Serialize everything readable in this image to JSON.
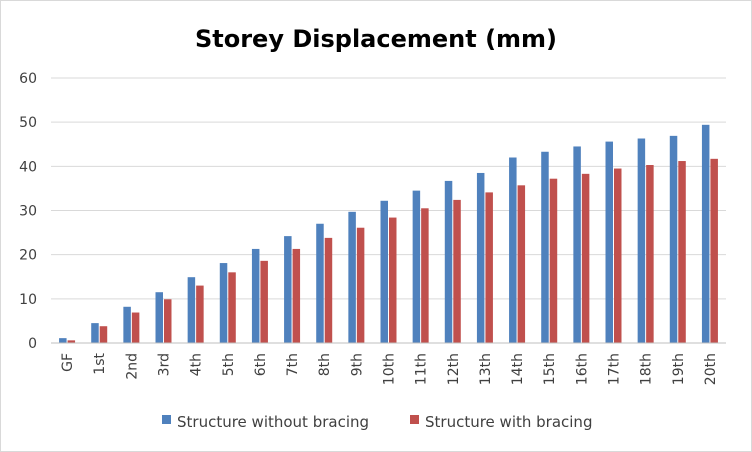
{
  "chart_data": {
    "type": "bar",
    "title": "Storey Displacement (mm)",
    "xlabel": "",
    "ylabel": "",
    "ylim": [
      0,
      60
    ],
    "yticks": [
      0,
      10,
      20,
      30,
      40,
      50,
      60
    ],
    "grid": true,
    "legend_position": "bottom",
    "categories": [
      "GF",
      "1st",
      "2nd",
      "3rd",
      "4th",
      "5th",
      "6th",
      "7th",
      "8th",
      "9th",
      "10th",
      "11th",
      "12th",
      "13th",
      "14th",
      "15th",
      "16th",
      "17th",
      "18th",
      "19th",
      "20th"
    ],
    "series": [
      {
        "name": "Structure without bracing",
        "color": "#4f81bd",
        "values": [
          1.1,
          4.5,
          8.2,
          11.5,
          14.9,
          18.1,
          21.3,
          24.2,
          27.0,
          29.7,
          32.2,
          34.5,
          36.7,
          38.5,
          42.0,
          43.3,
          44.5,
          45.6,
          46.3,
          46.9,
          49.4
        ]
      },
      {
        "name": "Structure with bracing",
        "color": "#c0504d",
        "values": [
          0.6,
          3.8,
          6.9,
          9.9,
          13.0,
          16.0,
          18.6,
          21.3,
          23.8,
          26.1,
          28.4,
          30.5,
          32.4,
          34.1,
          35.7,
          37.2,
          38.3,
          39.5,
          40.3,
          41.2,
          41.7
        ]
      }
    ]
  }
}
